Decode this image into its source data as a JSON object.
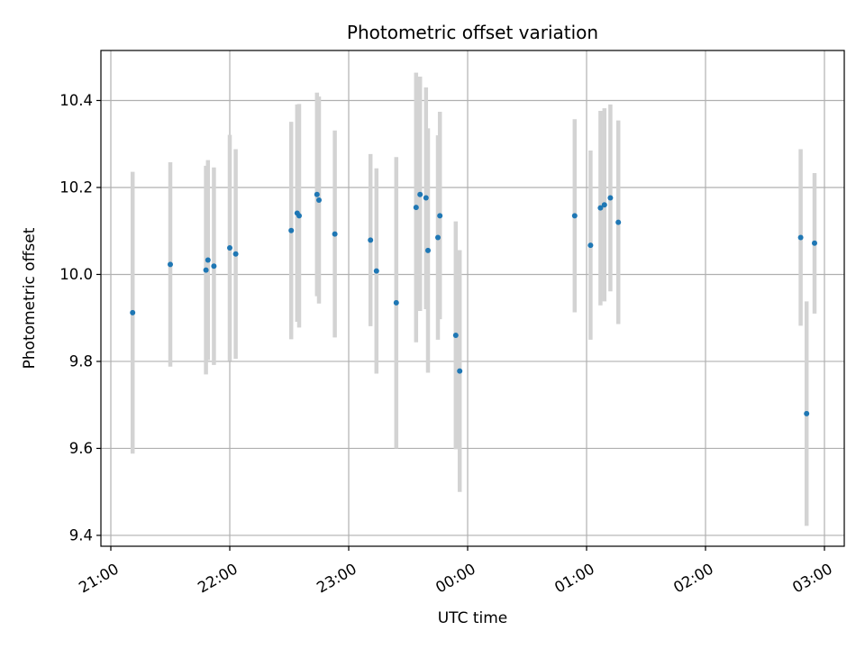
{
  "chart_data": {
    "type": "scatter",
    "title": "Photometric offset variation",
    "xlabel": "UTC time",
    "ylabel": "Photometric offset",
    "x_tick_labels": [
      "21:00",
      "22:00",
      "23:00",
      "00:00",
      "01:00",
      "02:00",
      "03:00"
    ],
    "x_tick_minutes": [
      0,
      60,
      120,
      180,
      240,
      300,
      360
    ],
    "xlim_minutes": [
      -5,
      370
    ],
    "y_ticks": [
      9.4,
      9.6,
      9.8,
      10.0,
      10.2,
      10.4
    ],
    "y_tick_labels": [
      "9.4",
      "9.6",
      "9.8",
      "10.0",
      "10.2",
      "10.4"
    ],
    "ylim": [
      9.375,
      10.515
    ],
    "grid": true,
    "point_color": "#1f77b4",
    "errorbar_color": "#d3d3d3",
    "points": [
      {
        "time": "21:11",
        "y": 9.912,
        "err_low": 9.588,
        "err_high": 10.236
      },
      {
        "time": "21:30",
        "y": 10.023,
        "err_low": 9.788,
        "err_high": 10.258
      },
      {
        "time": "21:48",
        "y": 10.01,
        "err_low": 9.77,
        "err_high": 10.25
      },
      {
        "time": "21:49",
        "y": 10.033,
        "err_low": 9.803,
        "err_high": 10.263
      },
      {
        "time": "21:52",
        "y": 10.019,
        "err_low": 9.792,
        "err_high": 10.246
      },
      {
        "time": "22:00",
        "y": 10.061,
        "err_low": 9.801,
        "err_high": 10.321
      },
      {
        "time": "22:03",
        "y": 10.047,
        "err_low": 9.806,
        "err_high": 10.288
      },
      {
        "time": "22:31",
        "y": 10.101,
        "err_low": 9.851,
        "err_high": 10.351
      },
      {
        "time": "22:34",
        "y": 10.141,
        "err_low": 9.891,
        "err_high": 10.391
      },
      {
        "time": "22:35",
        "y": 10.135,
        "err_low": 9.878,
        "err_high": 10.392
      },
      {
        "time": "22:44",
        "y": 10.184,
        "err_low": 9.95,
        "err_high": 10.418
      },
      {
        "time": "22:45",
        "y": 10.171,
        "err_low": 9.933,
        "err_high": 10.409
      },
      {
        "time": "22:53",
        "y": 10.093,
        "err_low": 9.855,
        "err_high": 10.331
      },
      {
        "time": "23:11",
        "y": 10.079,
        "err_low": 9.881,
        "err_high": 10.277
      },
      {
        "time": "23:14",
        "y": 10.008,
        "err_low": 9.772,
        "err_high": 10.244
      },
      {
        "time": "23:24",
        "y": 9.935,
        "err_low": 9.6,
        "err_high": 10.27
      },
      {
        "time": "23:34",
        "y": 10.154,
        "err_low": 9.844,
        "err_high": 10.464
      },
      {
        "time": "23:36",
        "y": 10.184,
        "err_low": 9.916,
        "err_high": 10.455
      },
      {
        "time": "23:39",
        "y": 10.176,
        "err_low": 9.92,
        "err_high": 10.43
      },
      {
        "time": "23:40",
        "y": 10.055,
        "err_low": 9.774,
        "err_high": 10.336
      },
      {
        "time": "23:45",
        "y": 10.085,
        "err_low": 9.85,
        "err_high": 10.32
      },
      {
        "time": "23:46",
        "y": 10.135,
        "err_low": 9.897,
        "err_high": 10.374
      },
      {
        "time": "23:54",
        "y": 9.86,
        "err_low": 9.598,
        "err_high": 10.122
      },
      {
        "time": "23:56",
        "y": 9.778,
        "err_low": 9.5,
        "err_high": 10.056
      },
      {
        "time": "00:54",
        "y": 10.135,
        "err_low": 9.913,
        "err_high": 10.357
      },
      {
        "time": "01:02",
        "y": 10.067,
        "err_low": 9.85,
        "err_high": 10.285
      },
      {
        "time": "01:07",
        "y": 10.153,
        "err_low": 9.929,
        "err_high": 10.376
      },
      {
        "time": "01:09",
        "y": 10.16,
        "err_low": 9.938,
        "err_high": 10.382
      },
      {
        "time": "01:12",
        "y": 10.176,
        "err_low": 9.961,
        "err_high": 10.391
      },
      {
        "time": "01:16",
        "y": 10.12,
        "err_low": 9.886,
        "err_high": 10.354
      },
      {
        "time": "02:48",
        "y": 10.085,
        "err_low": 9.882,
        "err_high": 10.288
      },
      {
        "time": "02:51",
        "y": 9.68,
        "err_low": 9.422,
        "err_high": 9.938
      },
      {
        "time": "02:55",
        "y": 10.072,
        "err_low": 9.91,
        "err_high": 10.233
      }
    ]
  }
}
